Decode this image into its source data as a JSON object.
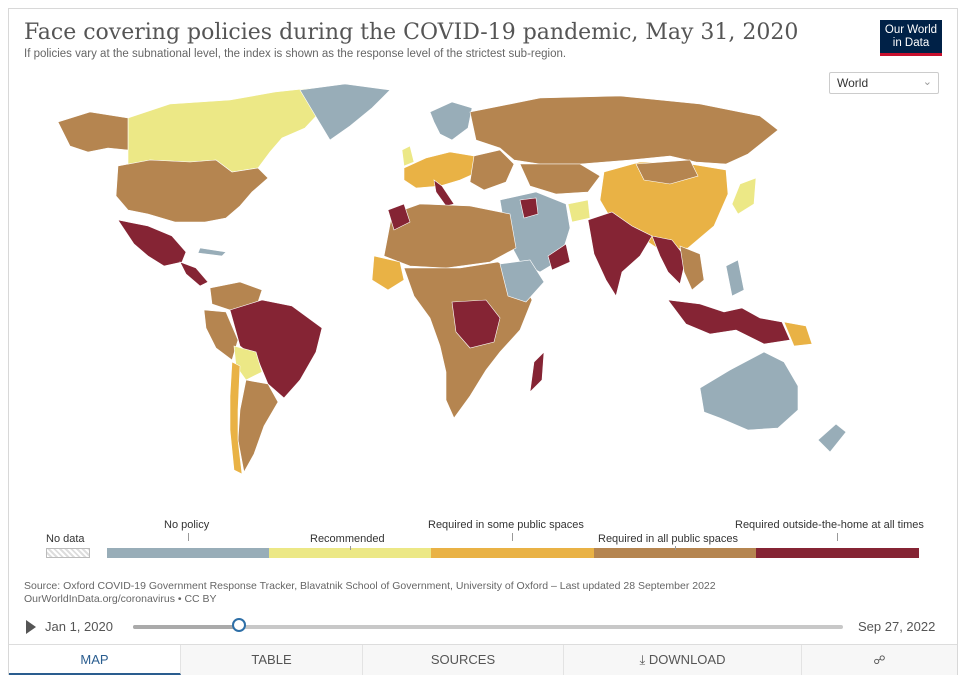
{
  "header": {
    "title": "Face covering policies during the COVID-19 pandemic, May 31, 2020",
    "subtitle": "If policies vary at the subnational level, the index is shown as the response level of the strictest sub-region.",
    "logo_line1": "Our World",
    "logo_line2": "in Data"
  },
  "region_select": {
    "value": "World"
  },
  "legend": {
    "no_data": "No data",
    "categories": [
      {
        "label": "No policy",
        "color": "#98adb8"
      },
      {
        "label": "Recommended",
        "color": "#ece886"
      },
      {
        "label": "Required in some public spaces",
        "color": "#e9b245"
      },
      {
        "label": "Required in all public spaces",
        "color": "#b58550"
      },
      {
        "label": "Required outside-the-home at all times",
        "color": "#852434"
      }
    ]
  },
  "source": {
    "line1": "Source: Oxford COVID-19 Government Response Tracker, Blavatnik School of Government, University of Oxford – Last updated 28 September 2022",
    "line2": "OurWorldInData.org/coronavirus • CC BY"
  },
  "timeline": {
    "start": "Jan 1, 2020",
    "end": "Sep 27, 2022",
    "position": 0.149
  },
  "tabs": [
    {
      "label": "MAP",
      "active": true
    },
    {
      "label": "TABLE",
      "active": false
    },
    {
      "label": "SOURCES",
      "active": false
    },
    {
      "label": "DOWNLOAD",
      "active": false
    },
    {
      "label": "",
      "active": false
    }
  ],
  "icons": {
    "download": "download-icon",
    "share": "share-icon",
    "play": "play-icon",
    "dropdown": "chevron-down-icon"
  }
}
